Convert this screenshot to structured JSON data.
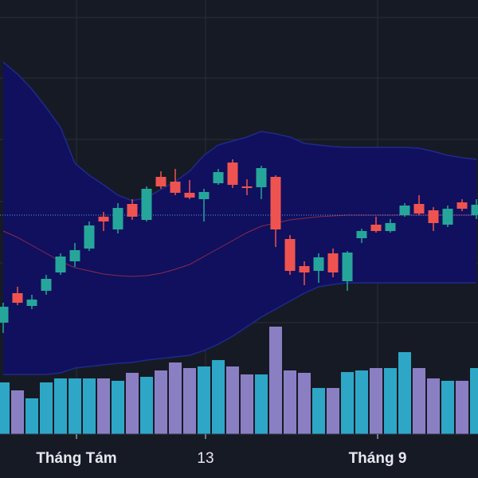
{
  "chart_data": {
    "type": "candlestick",
    "categories": [
      null,
      null,
      null,
      null,
      null,
      "Tháng Tám",
      null,
      null,
      null,
      null,
      null,
      null,
      null,
      null,
      "13",
      null,
      null,
      null,
      null,
      null,
      null,
      null,
      null,
      null,
      null,
      null,
      "Tháng 9",
      null,
      null,
      null,
      null,
      null,
      null,
      null
    ],
    "open": [
      195,
      232,
      216,
      235,
      258,
      272,
      288,
      328,
      312,
      344,
      324,
      378,
      372,
      358,
      350,
      370,
      396,
      366,
      365,
      378,
      300,
      266,
      260,
      282,
      247,
      301,
      318,
      310,
      330,
      344,
      336,
      318,
      346,
      330
    ],
    "close": [
      215,
      220,
      224,
      250,
      278,
      286,
      317,
      322,
      339,
      328,
      363,
      366,
      358,
      352,
      359,
      384,
      368,
      364,
      389,
      312,
      260,
      258,
      277,
      258,
      283,
      310,
      310,
      320,
      342,
      332,
      320,
      338,
      338,
      343
    ],
    "high": [
      220,
      240,
      230,
      255,
      282,
      295,
      322,
      334,
      345,
      350,
      366,
      385,
      388,
      374,
      363,
      388,
      400,
      375,
      392,
      380,
      305,
      272,
      282,
      288,
      285,
      313,
      328,
      325,
      345,
      355,
      340,
      342,
      350,
      350
    ],
    "low": [
      182,
      217,
      212,
      230,
      255,
      265,
      285,
      310,
      307,
      324,
      322,
      363,
      355,
      350,
      322,
      368,
      364,
      355,
      350,
      290,
      255,
      242,
      245,
      252,
      235,
      295,
      308,
      308,
      328,
      330,
      310,
      315,
      335,
      325
    ],
    "volume": [
      65,
      55,
      45,
      65,
      70,
      70,
      70,
      70,
      67,
      77,
      72,
      80,
      90,
      83,
      85,
      93,
      85,
      75,
      75,
      135,
      80,
      77,
      58,
      58,
      78,
      80,
      83,
      83,
      103,
      83,
      70,
      67,
      67,
      83
    ],
    "band_upper": [
      522,
      507,
      488,
      465,
      440,
      395,
      380,
      368,
      355,
      348,
      352,
      362,
      372,
      385,
      405,
      418,
      423,
      428,
      435,
      432,
      428,
      420,
      418,
      416,
      415,
      415,
      415,
      415,
      415,
      414,
      410,
      405,
      402,
      400
    ],
    "band_middle": [
      310,
      302,
      292,
      282,
      272,
      264,
      260,
      256,
      254,
      253,
      254,
      257,
      262,
      268,
      278,
      288,
      298,
      308,
      316,
      320,
      324,
      326,
      328,
      329,
      330,
      330,
      330,
      330,
      330,
      330,
      330,
      330,
      330,
      330
    ],
    "band_lower": [
      130,
      130,
      130,
      130,
      132,
      138,
      140,
      142,
      144,
      145,
      148,
      150,
      152,
      154,
      160,
      168,
      178,
      190,
      202,
      212,
      222,
      232,
      240,
      243,
      245,
      245,
      245,
      245,
      245,
      245,
      245,
      245,
      245,
      245
    ],
    "price_line": 330,
    "ylim": [
      0,
      600
    ],
    "y2lim": [
      0,
      545
    ],
    "y_grid": [
      578,
      502,
      425,
      347,
      270,
      195
    ],
    "up_color": "#26a69a",
    "down_color": "#ef5350",
    "volume_up_color": "#2ea7c6",
    "volume_down_color": "#8b7fc4",
    "band_color": "#10105e",
    "band_line_color": "#1f2a8a",
    "middle_color": "#8b2a4a"
  }
}
